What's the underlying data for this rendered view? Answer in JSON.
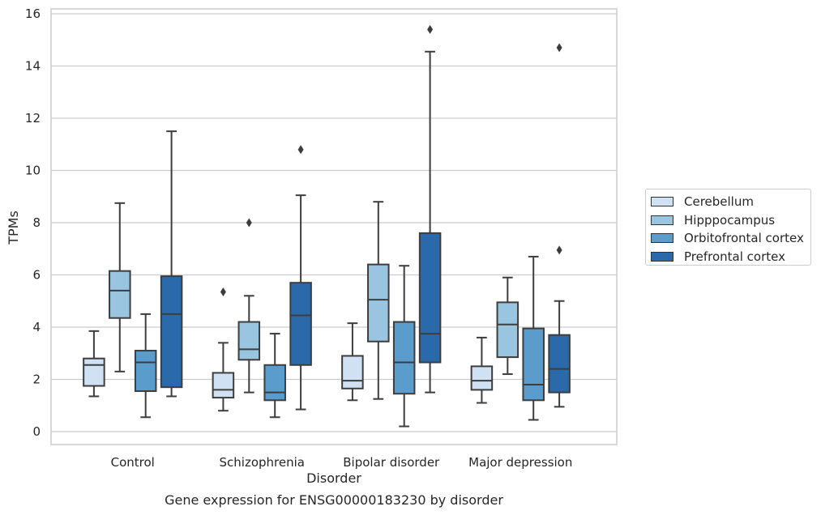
{
  "chart_data": {
    "type": "box",
    "title": "Gene expression for ENSG00000183230 by disorder",
    "xlabel": "Disorder",
    "ylabel": "TPMs",
    "ylim": [
      -0.5,
      16.2
    ],
    "yticks": [
      0,
      2,
      4,
      6,
      8,
      10,
      12,
      14,
      16
    ],
    "grid": true,
    "legend_position": "right",
    "categories": [
      "Control",
      "Schizophrenia",
      "Bipolar disorder",
      "Major depression"
    ],
    "series": [
      {
        "name": "Cerebellum",
        "color": "#cfe1f2",
        "boxes": [
          {
            "whislo": 1.35,
            "q1": 1.75,
            "med": 2.55,
            "q3": 2.8,
            "whishi": 3.85,
            "fliers": []
          },
          {
            "whislo": 0.8,
            "q1": 1.3,
            "med": 1.6,
            "q3": 2.25,
            "whishi": 3.4,
            "fliers": [
              5.35
            ]
          },
          {
            "whislo": 1.2,
            "q1": 1.65,
            "med": 1.95,
            "q3": 2.9,
            "whishi": 4.15,
            "fliers": []
          },
          {
            "whislo": 1.1,
            "q1": 1.6,
            "med": 1.95,
            "q3": 2.5,
            "whishi": 3.6,
            "fliers": []
          }
        ]
      },
      {
        "name": "Hipppocampus",
        "color": "#9ac5e0",
        "boxes": [
          {
            "whislo": 2.3,
            "q1": 4.35,
            "med": 5.4,
            "q3": 6.15,
            "whishi": 8.75,
            "fliers": []
          },
          {
            "whislo": 1.5,
            "q1": 2.75,
            "med": 3.15,
            "q3": 4.2,
            "whishi": 5.2,
            "fliers": [
              8.0
            ]
          },
          {
            "whislo": 1.25,
            "q1": 3.45,
            "med": 5.05,
            "q3": 6.4,
            "whishi": 8.8,
            "fliers": []
          },
          {
            "whislo": 2.2,
            "q1": 2.85,
            "med": 4.1,
            "q3": 4.95,
            "whishi": 5.9,
            "fliers": []
          }
        ]
      },
      {
        "name": "Orbitofrontal cortex",
        "color": "#5a9ccb",
        "boxes": [
          {
            "whislo": 0.55,
            "q1": 1.55,
            "med": 2.65,
            "q3": 3.1,
            "whishi": 4.5,
            "fliers": []
          },
          {
            "whislo": 0.55,
            "q1": 1.2,
            "med": 1.5,
            "q3": 2.55,
            "whishi": 3.75,
            "fliers": []
          },
          {
            "whislo": 0.2,
            "q1": 1.45,
            "med": 2.65,
            "q3": 4.2,
            "whishi": 6.35,
            "fliers": []
          },
          {
            "whislo": 0.45,
            "q1": 1.2,
            "med": 1.8,
            "q3": 3.95,
            "whishi": 6.7,
            "fliers": []
          }
        ]
      },
      {
        "name": "Prefrontal cortex",
        "color": "#2b6aaa",
        "boxes": [
          {
            "whislo": 1.35,
            "q1": 1.7,
            "med": 4.5,
            "q3": 5.95,
            "whishi": 11.5,
            "fliers": []
          },
          {
            "whislo": 0.85,
            "q1": 2.55,
            "med": 4.45,
            "q3": 5.7,
            "whishi": 9.05,
            "fliers": [
              10.8
            ]
          },
          {
            "whislo": 1.5,
            "q1": 2.65,
            "med": 3.75,
            "q3": 7.6,
            "whishi": 14.55,
            "fliers": [
              15.4
            ]
          },
          {
            "whislo": 0.95,
            "q1": 1.5,
            "med": 2.4,
            "q3": 3.7,
            "whishi": 5.0,
            "fliers": [
              6.95,
              14.7
            ]
          }
        ]
      }
    ]
  }
}
